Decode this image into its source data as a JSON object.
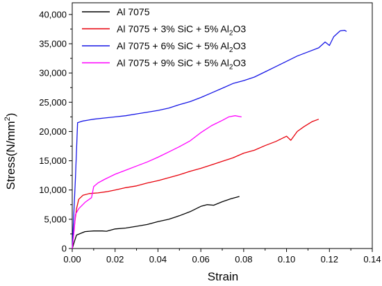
{
  "chart_data": {
    "type": "line",
    "xlabel": "Strain",
    "ylabel": "Stress(N/mm²)",
    "ylabel_parts": {
      "base": "Stress(N/mm",
      "sup": "2",
      "end": ")"
    },
    "xlim": [
      0,
      0.14
    ],
    "ylim": [
      0,
      42000
    ],
    "x_ticks": [
      0.0,
      0.02,
      0.04,
      0.06,
      0.08,
      0.1,
      0.12,
      0.14
    ],
    "x_tick_labels": [
      "0.00",
      "0.02",
      "0.04",
      "0.06",
      "0.08",
      "0.10",
      "0.12",
      "0.14"
    ],
    "y_ticks": [
      0,
      5000,
      10000,
      15000,
      20000,
      25000,
      30000,
      35000,
      40000
    ],
    "y_tick_labels": [
      "0",
      "5,000",
      "10,000",
      "15,000",
      "20,000",
      "25,000",
      "30,000",
      "35,000",
      "40,000"
    ],
    "legend_position": "top-left",
    "grid": false,
    "series": [
      {
        "name": "Al 7075",
        "name_parts": {
          "main": "Al 7075",
          "sub": "",
          "end": ""
        },
        "color": "#000000",
        "points": [
          [
            0.0,
            0
          ],
          [
            0.001,
            1200
          ],
          [
            0.002,
            2300
          ],
          [
            0.004,
            2600
          ],
          [
            0.006,
            2900
          ],
          [
            0.01,
            3000
          ],
          [
            0.014,
            3000
          ],
          [
            0.016,
            2950
          ],
          [
            0.02,
            3350
          ],
          [
            0.025,
            3500
          ],
          [
            0.03,
            3800
          ],
          [
            0.035,
            4100
          ],
          [
            0.04,
            4600
          ],
          [
            0.045,
            5000
          ],
          [
            0.05,
            5600
          ],
          [
            0.055,
            6300
          ],
          [
            0.06,
            7200
          ],
          [
            0.063,
            7500
          ],
          [
            0.066,
            7400
          ],
          [
            0.07,
            8000
          ],
          [
            0.074,
            8500
          ],
          [
            0.078,
            8900
          ]
        ]
      },
      {
        "name": "Al 7075 + 3% SiC + 5% Al2O3",
        "name_parts": {
          "main": "Al 7075 + 3% SiC + 5% Al",
          "sub": "2",
          "end": "O3"
        },
        "color": "#e8000b",
        "points": [
          [
            0.0,
            0
          ],
          [
            0.0012,
            4500
          ],
          [
            0.002,
            6800
          ],
          [
            0.003,
            8400
          ],
          [
            0.005,
            9100
          ],
          [
            0.008,
            9400
          ],
          [
            0.012,
            9500
          ],
          [
            0.016,
            9700
          ],
          [
            0.02,
            10000
          ],
          [
            0.025,
            10400
          ],
          [
            0.03,
            10700
          ],
          [
            0.035,
            11200
          ],
          [
            0.04,
            11600
          ],
          [
            0.045,
            12100
          ],
          [
            0.05,
            12600
          ],
          [
            0.055,
            13200
          ],
          [
            0.06,
            13700
          ],
          [
            0.065,
            14300
          ],
          [
            0.07,
            14900
          ],
          [
            0.075,
            15500
          ],
          [
            0.08,
            16300
          ],
          [
            0.085,
            16800
          ],
          [
            0.09,
            17600
          ],
          [
            0.095,
            18300
          ],
          [
            0.1,
            19200
          ],
          [
            0.102,
            18500
          ],
          [
            0.105,
            20000
          ],
          [
            0.108,
            20800
          ],
          [
            0.112,
            21700
          ],
          [
            0.115,
            22100
          ]
        ]
      },
      {
        "name": "Al 7075 + 6% SiC + 5% Al2O3",
        "name_parts": {
          "main": "Al 7075 + 6% SiC + 5% Al",
          "sub": "2",
          "end": "O3"
        },
        "color": "#1515e6",
        "points": [
          [
            0.0,
            0
          ],
          [
            0.0015,
            12000
          ],
          [
            0.0025,
            21500
          ],
          [
            0.005,
            21800
          ],
          [
            0.01,
            22100
          ],
          [
            0.015,
            22300
          ],
          [
            0.02,
            22500
          ],
          [
            0.025,
            22700
          ],
          [
            0.03,
            23000
          ],
          [
            0.035,
            23300
          ],
          [
            0.04,
            23600
          ],
          [
            0.045,
            24000
          ],
          [
            0.05,
            24600
          ],
          [
            0.055,
            25100
          ],
          [
            0.06,
            25800
          ],
          [
            0.065,
            26600
          ],
          [
            0.07,
            27400
          ],
          [
            0.075,
            28200
          ],
          [
            0.08,
            28700
          ],
          [
            0.085,
            29300
          ],
          [
            0.09,
            30200
          ],
          [
            0.095,
            31100
          ],
          [
            0.1,
            32000
          ],
          [
            0.105,
            32900
          ],
          [
            0.11,
            33600
          ],
          [
            0.115,
            34300
          ],
          [
            0.118,
            35300
          ],
          [
            0.12,
            34700
          ],
          [
            0.122,
            36200
          ],
          [
            0.125,
            37200
          ],
          [
            0.127,
            37300
          ],
          [
            0.128,
            37100
          ]
        ]
      },
      {
        "name": "Al 7075 + 9% SiC + 5% Al2O3",
        "name_parts": {
          "main": "Al 7075 + 9% SiC + 5% Al",
          "sub": "2",
          "end": "O3"
        },
        "color": "#ff00ff",
        "points": [
          [
            0.0,
            0
          ],
          [
            0.001,
            3500
          ],
          [
            0.0015,
            5800
          ],
          [
            0.003,
            6800
          ],
          [
            0.006,
            7900
          ],
          [
            0.009,
            8700
          ],
          [
            0.01,
            10600
          ],
          [
            0.012,
            11200
          ],
          [
            0.015,
            11800
          ],
          [
            0.02,
            12700
          ],
          [
            0.025,
            13400
          ],
          [
            0.03,
            14100
          ],
          [
            0.035,
            14800
          ],
          [
            0.04,
            15600
          ],
          [
            0.045,
            16500
          ],
          [
            0.05,
            17400
          ],
          [
            0.055,
            18400
          ],
          [
            0.06,
            19800
          ],
          [
            0.065,
            21000
          ],
          [
            0.07,
            21900
          ],
          [
            0.073,
            22500
          ],
          [
            0.076,
            22700
          ],
          [
            0.079,
            22500
          ]
        ]
      }
    ]
  }
}
